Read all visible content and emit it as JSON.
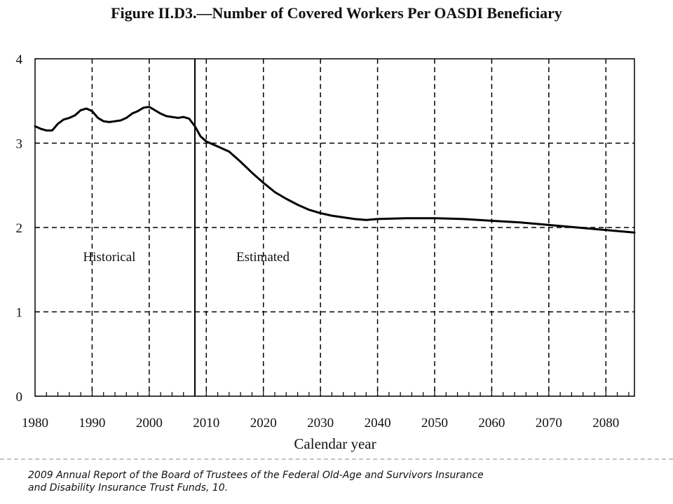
{
  "figure": {
    "title": "Figure II.D3.—Number of Covered Workers Per OASDI Beneficiary"
  },
  "source": {
    "line1": "2009 Annual Report of the Board of Trustees of the Federal Old-Age and Survivors Insurance",
    "line2": "and Disability  Insurance Trust Funds, 10."
  },
  "colors": {
    "line": "#000000",
    "grid": "#000000",
    "footer_rule": "#b8c3d6"
  },
  "chart_data": {
    "type": "line",
    "title": "Figure II.D3.—Number of Covered Workers Per OASDI Beneficiary",
    "xlabel": "Calendar year",
    "ylabel": "",
    "xlim": [
      1980,
      2085
    ],
    "ylim": [
      0,
      4
    ],
    "x_ticks": [
      1980,
      1990,
      2000,
      2010,
      2020,
      2030,
      2040,
      2050,
      2060,
      2070,
      2080
    ],
    "y_ticks": [
      0,
      1,
      2,
      3,
      4
    ],
    "grid": "dashed",
    "divider_year": 2008,
    "region_labels": [
      "Historical",
      "Estimated"
    ],
    "series": [
      {
        "x": [
          1980,
          1981,
          1982,
          1983,
          1984,
          1985,
          1986,
          1987,
          1988,
          1989,
          1990,
          1991,
          1992,
          1993,
          1994,
          1995,
          1996,
          1997,
          1998,
          1999,
          2000,
          2001,
          2002,
          2003,
          2004,
          2005,
          2006,
          2007,
          2008,
          2009,
          2010,
          2012,
          2014,
          2016,
          2018,
          2020,
          2022,
          2024,
          2026,
          2028,
          2030,
          2032,
          2034,
          2036,
          2038,
          2040,
          2045,
          2050,
          2055,
          2060,
          2065,
          2070,
          2075,
          2080,
          2085
        ],
        "y": [
          3.2,
          3.17,
          3.15,
          3.15,
          3.23,
          3.28,
          3.3,
          3.33,
          3.39,
          3.41,
          3.38,
          3.3,
          3.26,
          3.25,
          3.26,
          3.27,
          3.3,
          3.35,
          3.38,
          3.42,
          3.43,
          3.39,
          3.35,
          3.32,
          3.31,
          3.3,
          3.31,
          3.29,
          3.2,
          3.08,
          3.02,
          2.96,
          2.9,
          2.78,
          2.65,
          2.53,
          2.42,
          2.34,
          2.27,
          2.21,
          2.17,
          2.14,
          2.12,
          2.1,
          2.09,
          2.1,
          2.11,
          2.11,
          2.1,
          2.08,
          2.06,
          2.03,
          2.0,
          1.97,
          1.94
        ]
      }
    ]
  }
}
